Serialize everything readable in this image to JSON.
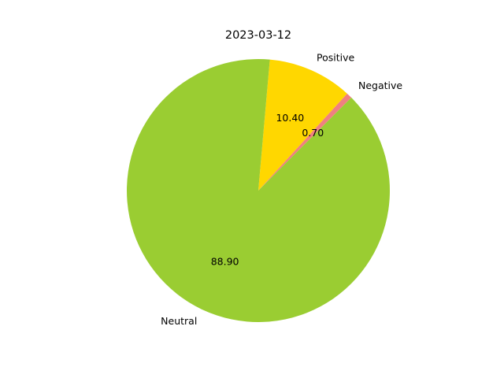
{
  "chart_data": {
    "type": "pie",
    "title": "2023-03-12",
    "start_angle_deg": 45,
    "direction": "counterclockwise",
    "value_format_decimals": 2,
    "slices": [
      {
        "label": "Negative",
        "value": 0.7,
        "value_text": "0.70",
        "color": "#f08080"
      },
      {
        "label": "Positive",
        "value": 10.4,
        "value_text": "10.40",
        "color": "#ffd700"
      },
      {
        "label": "Neutral",
        "value": 88.9,
        "value_text": "88.90",
        "color": "#9acd32"
      }
    ]
  }
}
